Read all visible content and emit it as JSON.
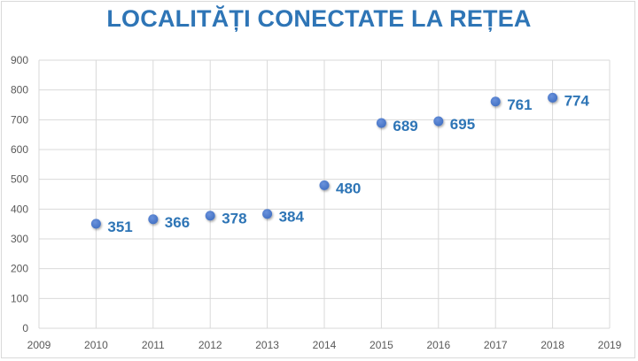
{
  "chart_data": {
    "type": "scatter",
    "title": "LOCALITĂȚI CONECTATE LA REȚEA",
    "xlabel": "",
    "ylabel": "",
    "x": [
      2010,
      2011,
      2012,
      2013,
      2014,
      2015,
      2016,
      2017,
      2018
    ],
    "values": [
      351,
      366,
      378,
      384,
      480,
      689,
      695,
      761,
      774
    ],
    "data_labels": [
      "351",
      "366",
      "378",
      "384",
      "480",
      "689",
      "695",
      "761",
      "774"
    ],
    "xlim": [
      2009,
      2019
    ],
    "ylim": [
      0,
      900
    ],
    "x_ticks": [
      "2009",
      "2010",
      "2011",
      "2012",
      "2013",
      "2014",
      "2015",
      "2016",
      "2017",
      "2018",
      "2019"
    ],
    "y_ticks": [
      "0",
      "100",
      "200",
      "300",
      "400",
      "500",
      "600",
      "700",
      "800",
      "900"
    ],
    "grid": true,
    "legend": null,
    "colors": {
      "marker": "#4472c4",
      "label": "#2e75b6",
      "title": "#2e75b6",
      "grid": "#d9d9d9",
      "axis_text": "#595959"
    }
  }
}
